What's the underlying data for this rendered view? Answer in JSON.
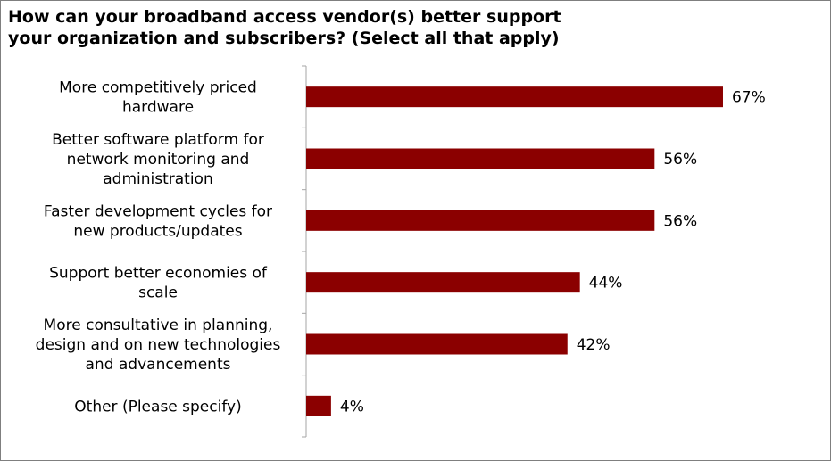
{
  "chart_data": {
    "type": "bar",
    "orientation": "horizontal",
    "title_lines": [
      "How can your broadband access vendor(s) better support",
      "your organization and subscribers? (Select all that apply)"
    ],
    "categories": [
      [
        "More competitively priced",
        "hardware"
      ],
      [
        "Better software platform for",
        "network monitoring and",
        "administration"
      ],
      [
        "Faster development cycles for",
        "new products/updates"
      ],
      [
        "Support better economies of",
        "scale"
      ],
      [
        "More consultative in planning,",
        "design and on new technologies",
        "and advancements"
      ],
      [
        "Other (Please specify)"
      ]
    ],
    "values": [
      67,
      56,
      56,
      44,
      42,
      4
    ],
    "value_labels": [
      "67%",
      "56%",
      "56%",
      "44%",
      "42%",
      "4%"
    ],
    "xlim": [
      0,
      100
    ],
    "bar_color": "#8b0000",
    "axis_color": "#a6a6a6",
    "grid": false,
    "legend": "none"
  }
}
